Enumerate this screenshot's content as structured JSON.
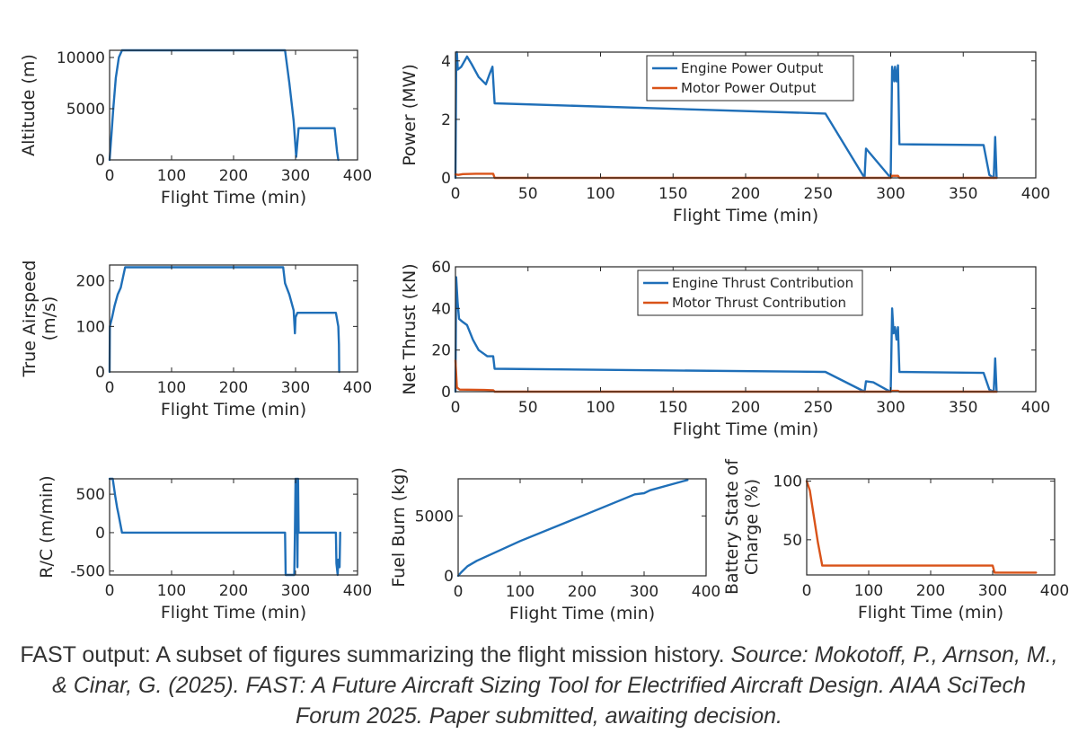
{
  "colors": {
    "engine": "#1f6fb8",
    "motor": "#d95319",
    "axis": "#262626"
  },
  "chart_data": [
    {
      "id": "altitude",
      "type": "line",
      "xlabel": "Flight Time (min)",
      "ylabel": [
        "Altitude (m)"
      ],
      "xlim": [
        0,
        400
      ],
      "ylim": [
        0,
        10700
      ],
      "xticks": [
        0,
        100,
        200,
        300,
        400
      ],
      "yticks": [
        0,
        5000,
        10000
      ],
      "series": [
        {
          "color": "engine",
          "points": [
            [
              0,
              0
            ],
            [
              3,
              2500
            ],
            [
              6,
              5000
            ],
            [
              10,
              8000
            ],
            [
              15,
              10000
            ],
            [
              20,
              10700
            ],
            [
              283,
              10700
            ],
            [
              290,
              7500
            ],
            [
              297,
              3800
            ],
            [
              301,
              300
            ],
            [
              305,
              3100
            ],
            [
              363,
              3100
            ],
            [
              367,
              800
            ],
            [
              369,
              0
            ]
          ]
        }
      ]
    },
    {
      "id": "power",
      "type": "line",
      "xlabel": "Flight Time (min)",
      "ylabel": [
        "Power (MW)"
      ],
      "xlim": [
        0,
        400
      ],
      "ylim": [
        0,
        4.3
      ],
      "xticks": [
        0,
        50,
        100,
        150,
        200,
        250,
        300,
        350,
        400
      ],
      "yticks": [
        0,
        2,
        4
      ],
      "legend": {
        "position": "top-center"
      },
      "series": [
        {
          "name": "Engine Power Output",
          "color": "engine",
          "points": [
            [
              0,
              0
            ],
            [
              0.5,
              3.7
            ],
            [
              1,
              4.3
            ],
            [
              1.6,
              3.7
            ],
            [
              4,
              3.8
            ],
            [
              8,
              4.15
            ],
            [
              11,
              3.9
            ],
            [
              16,
              3.45
            ],
            [
              21,
              3.2
            ],
            [
              23.5,
              3.55
            ],
            [
              25.5,
              3.8
            ],
            [
              27,
              2.55
            ],
            [
              255,
              2.2
            ],
            [
              282,
              0
            ],
            [
              283,
              1.0
            ],
            [
              300,
              0
            ],
            [
              301,
              3.8
            ],
            [
              302.5,
              3.3
            ],
            [
              303,
              3.8
            ],
            [
              304,
              3.3
            ],
            [
              305,
              3.85
            ],
            [
              306,
              1.15
            ],
            [
              364,
              1.12
            ],
            [
              368,
              0.1
            ],
            [
              371,
              0
            ],
            [
              372,
              1.4
            ],
            [
              373,
              0
            ]
          ]
        },
        {
          "name": "Motor Power Output",
          "color": "motor",
          "points": [
            [
              0,
              0.12
            ],
            [
              2,
              0.1
            ],
            [
              5,
              0.13
            ],
            [
              14,
              0.14
            ],
            [
              26,
              0.14
            ],
            [
              27,
              0
            ],
            [
              300,
              0
            ],
            [
              301,
              0.07
            ],
            [
              305,
              0.07
            ],
            [
              306,
              0
            ],
            [
              373,
              0
            ]
          ]
        }
      ]
    },
    {
      "id": "airspeed",
      "type": "line",
      "xlabel": "Flight Time (min)",
      "ylabel": [
        "True Airspeed",
        "(m/s)"
      ],
      "xlim": [
        0,
        400
      ],
      "ylim": [
        0,
        235
      ],
      "xticks": [
        0,
        100,
        200,
        300,
        400
      ],
      "yticks": [
        0,
        100,
        200
      ],
      "series": [
        {
          "color": "engine",
          "points": [
            [
              0,
              0
            ],
            [
              0.5,
              100
            ],
            [
              4,
              120
            ],
            [
              8,
              145
            ],
            [
              13,
              170
            ],
            [
              18,
              185
            ],
            [
              25,
              230
            ],
            [
              280,
              230
            ],
            [
              283,
              195
            ],
            [
              290,
              170
            ],
            [
              297,
              135
            ],
            [
              299,
              85
            ],
            [
              300,
              120
            ],
            [
              303,
              130
            ],
            [
              365,
              130
            ],
            [
              369,
              100
            ],
            [
              370,
              60
            ],
            [
              370.5,
              0
            ]
          ]
        }
      ]
    },
    {
      "id": "thrust",
      "type": "line",
      "xlabel": "Flight Time (min)",
      "ylabel": [
        "Net Thrust (kN)"
      ],
      "xlim": [
        0,
        400
      ],
      "ylim": [
        0,
        60
      ],
      "xticks": [
        0,
        50,
        100,
        150,
        200,
        250,
        300,
        350,
        400
      ],
      "yticks": [
        0,
        20,
        40,
        60
      ],
      "legend": {
        "position": "top-center"
      },
      "series": [
        {
          "name": "Engine Thrust Contribution",
          "color": "engine",
          "points": [
            [
              0,
              0
            ],
            [
              0.5,
              55
            ],
            [
              1.5,
              43
            ],
            [
              2.5,
              35
            ],
            [
              5,
              33.5
            ],
            [
              8,
              32
            ],
            [
              12,
              25
            ],
            [
              16,
              20
            ],
            [
              20,
              18
            ],
            [
              22,
              17
            ],
            [
              26,
              17
            ],
            [
              27,
              11
            ],
            [
              255,
              9.5
            ],
            [
              282,
              0
            ],
            [
              283,
              5
            ],
            [
              288,
              4.5
            ],
            [
              297,
              1
            ],
            [
              300,
              0
            ],
            [
              301,
              40
            ],
            [
              302,
              28
            ],
            [
              303,
              31
            ],
            [
              304,
              25
            ],
            [
              305,
              31
            ],
            [
              306,
              9.5
            ],
            [
              364,
              9
            ],
            [
              368,
              1
            ],
            [
              371,
              0
            ],
            [
              372,
              16
            ],
            [
              373,
              0
            ]
          ]
        },
        {
          "name": "Motor Thrust Contribution",
          "color": "motor",
          "points": [
            [
              0,
              15
            ],
            [
              1,
              2
            ],
            [
              3,
              1
            ],
            [
              20,
              0.8
            ],
            [
              26,
              0.7
            ],
            [
              27,
              0
            ],
            [
              300,
              0
            ],
            [
              301,
              0.4
            ],
            [
              305,
              0.4
            ],
            [
              306,
              0
            ],
            [
              373,
              0
            ]
          ]
        }
      ]
    },
    {
      "id": "rc",
      "type": "line",
      "xlabel": "Flight Time (min)",
      "ylabel": [
        "R/C (m/min)"
      ],
      "xlim": [
        0,
        400
      ],
      "ylim": [
        -550,
        700
      ],
      "xticks": [
        0,
        100,
        200,
        300,
        400
      ],
      "yticks": [
        -500,
        0,
        500
      ],
      "series": [
        {
          "color": "engine",
          "points": [
            [
              0,
              700
            ],
            [
              5,
              700
            ],
            [
              9,
              480
            ],
            [
              12,
              330
            ],
            [
              14,
              250
            ],
            [
              20,
              0
            ],
            [
              283,
              0
            ],
            [
              284,
              -550
            ],
            [
              298,
              -550
            ],
            [
              299,
              0
            ],
            [
              300,
              700
            ],
            [
              301,
              0
            ],
            [
              302,
              700
            ],
            [
              303,
              -450
            ],
            [
              304,
              700
            ],
            [
              305,
              0
            ],
            [
              365,
              0
            ],
            [
              366,
              -400
            ],
            [
              368,
              -550
            ],
            [
              369,
              -350
            ],
            [
              371,
              -450
            ],
            [
              372,
              0
            ]
          ]
        }
      ]
    },
    {
      "id": "fuel",
      "type": "line",
      "xlabel": "Flight Time (min)",
      "ylabel": [
        "Fuel Burn (kg)"
      ],
      "xlim": [
        0,
        400
      ],
      "ylim": [
        0,
        8100
      ],
      "xticks": [
        0,
        100,
        200,
        300,
        400
      ],
      "yticks": [
        0,
        5000
      ],
      "series": [
        {
          "color": "engine",
          "points": [
            [
              0,
              0
            ],
            [
              5,
              300
            ],
            [
              15,
              800
            ],
            [
              30,
              1250
            ],
            [
              100,
              2900
            ],
            [
              200,
              5000
            ],
            [
              285,
              6800
            ],
            [
              300,
              6900
            ],
            [
              310,
              7150
            ],
            [
              370,
              8000
            ]
          ]
        }
      ]
    },
    {
      "id": "battery",
      "type": "line",
      "xlabel": "Flight Time (min)",
      "ylabel": [
        "Battery State of",
        "Charge (%)"
      ],
      "xlim": [
        0,
        400
      ],
      "ylim": [
        20,
        102
      ],
      "xticks": [
        0,
        100,
        200,
        300,
        400
      ],
      "yticks": [
        50,
        100
      ],
      "series": [
        {
          "color": "motor",
          "points": [
            [
              0,
              100
            ],
            [
              5,
              92
            ],
            [
              10,
              75
            ],
            [
              18,
              48
            ],
            [
              25,
              28
            ],
            [
              300,
              28
            ],
            [
              303,
              22
            ],
            [
              370,
              22
            ]
          ]
        }
      ]
    }
  ],
  "caption": {
    "main": "FAST output: A subset of figures summarizing the flight mission history. ",
    "source": "Source: Mokotoff, P., Arnson, M., & Cinar, G. (2025). FAST: A Future Aircraft Sizing Tool for Electrified Aircraft Design. AIAA SciTech Forum 2025. Paper submitted, awaiting decision."
  }
}
